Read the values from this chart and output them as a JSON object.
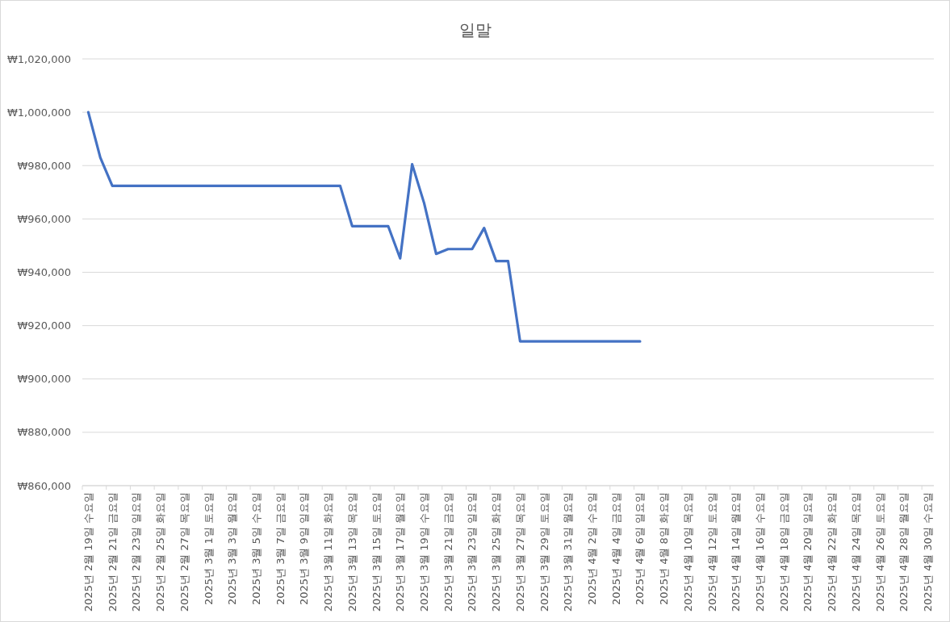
{
  "chart_data": {
    "type": "line",
    "title": "일말",
    "categories": [
      "2025년 2월 19일 수요일",
      null,
      "2025년 2월 21일 금요일",
      null,
      "2025년 2월 23일 일요일",
      null,
      "2025년 2월 25일 화요일",
      null,
      "2025년 2월 27일 목요일",
      null,
      "2025년 3월 1일 토요일",
      null,
      "2025년 3월 3일 월요일",
      null,
      "2025년 3월 5일 수요일",
      null,
      "2025년 3월 7일 금요일",
      null,
      "2025년 3월 9일 일요일",
      null,
      "2025년 3월 11일 화요일",
      null,
      "2025년 3월 13일 목요일",
      null,
      "2025년 3월 15일 토요일",
      null,
      "2025년 3월 17일 월요일",
      null,
      "2025년 3월 19일 수요일",
      null,
      "2025년 3월 21일 금요일",
      null,
      "2025년 3월 23일 일요일",
      null,
      "2025년 3월 25일 화요일",
      null,
      "2025년 3월 27일 목요일",
      null,
      "2025년 3월 29일 토요일",
      null,
      "2025년 3월 31일 월요일",
      null,
      "2025년 4월 2일 수요일",
      null,
      "2025년 4월 4일 금요일",
      null,
      "2025년 4월 6일 일요일",
      null,
      "2025년 4월 8일 화요일",
      null,
      "2025년 4월 10일 목요일",
      null,
      "2025년 4월 12일 토요일",
      null,
      "2025년 4월 14일 월요일",
      null,
      "2025년 4월 16일 수요일",
      null,
      "2025년 4월 18일 금요일",
      null,
      "2025년 4월 20일 일요일",
      null,
      "2025년 4월 22일 화요일",
      null,
      "2025년 4월 24일 목요일",
      null,
      "2025년 4월 26일 토요일",
      null,
      "2025년 4월 28일 월요일",
      null,
      "2025년 4월 30일 수요일"
    ],
    "series": [
      {
        "color": "#4472c4",
        "values": [
          1000000,
          983000,
          972400,
          972400,
          972400,
          972400,
          972400,
          972400,
          972400,
          972400,
          972400,
          972400,
          972400,
          972400,
          972400,
          972400,
          972400,
          972400,
          972400,
          972400,
          972400,
          972400,
          957300,
          957300,
          957300,
          957300,
          945200,
          980500,
          965900,
          946900,
          948700,
          948700,
          948700,
          956600,
          944200,
          944200,
          914100,
          914100,
          914100,
          914100,
          914100,
          914100,
          914100,
          914100,
          914100,
          914100,
          914100,
          null,
          null,
          null,
          null,
          null,
          null,
          null,
          null,
          null,
          null,
          null,
          null,
          null,
          null,
          null,
          null,
          null,
          null,
          null,
          null,
          null,
          null,
          null,
          null
        ]
      }
    ],
    "ylim": [
      860000,
      1020000
    ],
    "yticks": [
      {
        "value": 860000,
        "label": "₩860,000"
      },
      {
        "value": 880000,
        "label": "₩880,000"
      },
      {
        "value": 900000,
        "label": "₩900,000"
      },
      {
        "value": 920000,
        "label": "₩920,000"
      },
      {
        "value": 940000,
        "label": "₩940,000"
      },
      {
        "value": 960000,
        "label": "₩960,000"
      },
      {
        "value": 980000,
        "label": "₩980,000"
      },
      {
        "value": 1000000,
        "label": "₩1,000,000"
      },
      {
        "value": 1020000,
        "label": "₩1,020,000"
      }
    ],
    "grid": "y",
    "marker": "none",
    "line_style": "solid"
  }
}
